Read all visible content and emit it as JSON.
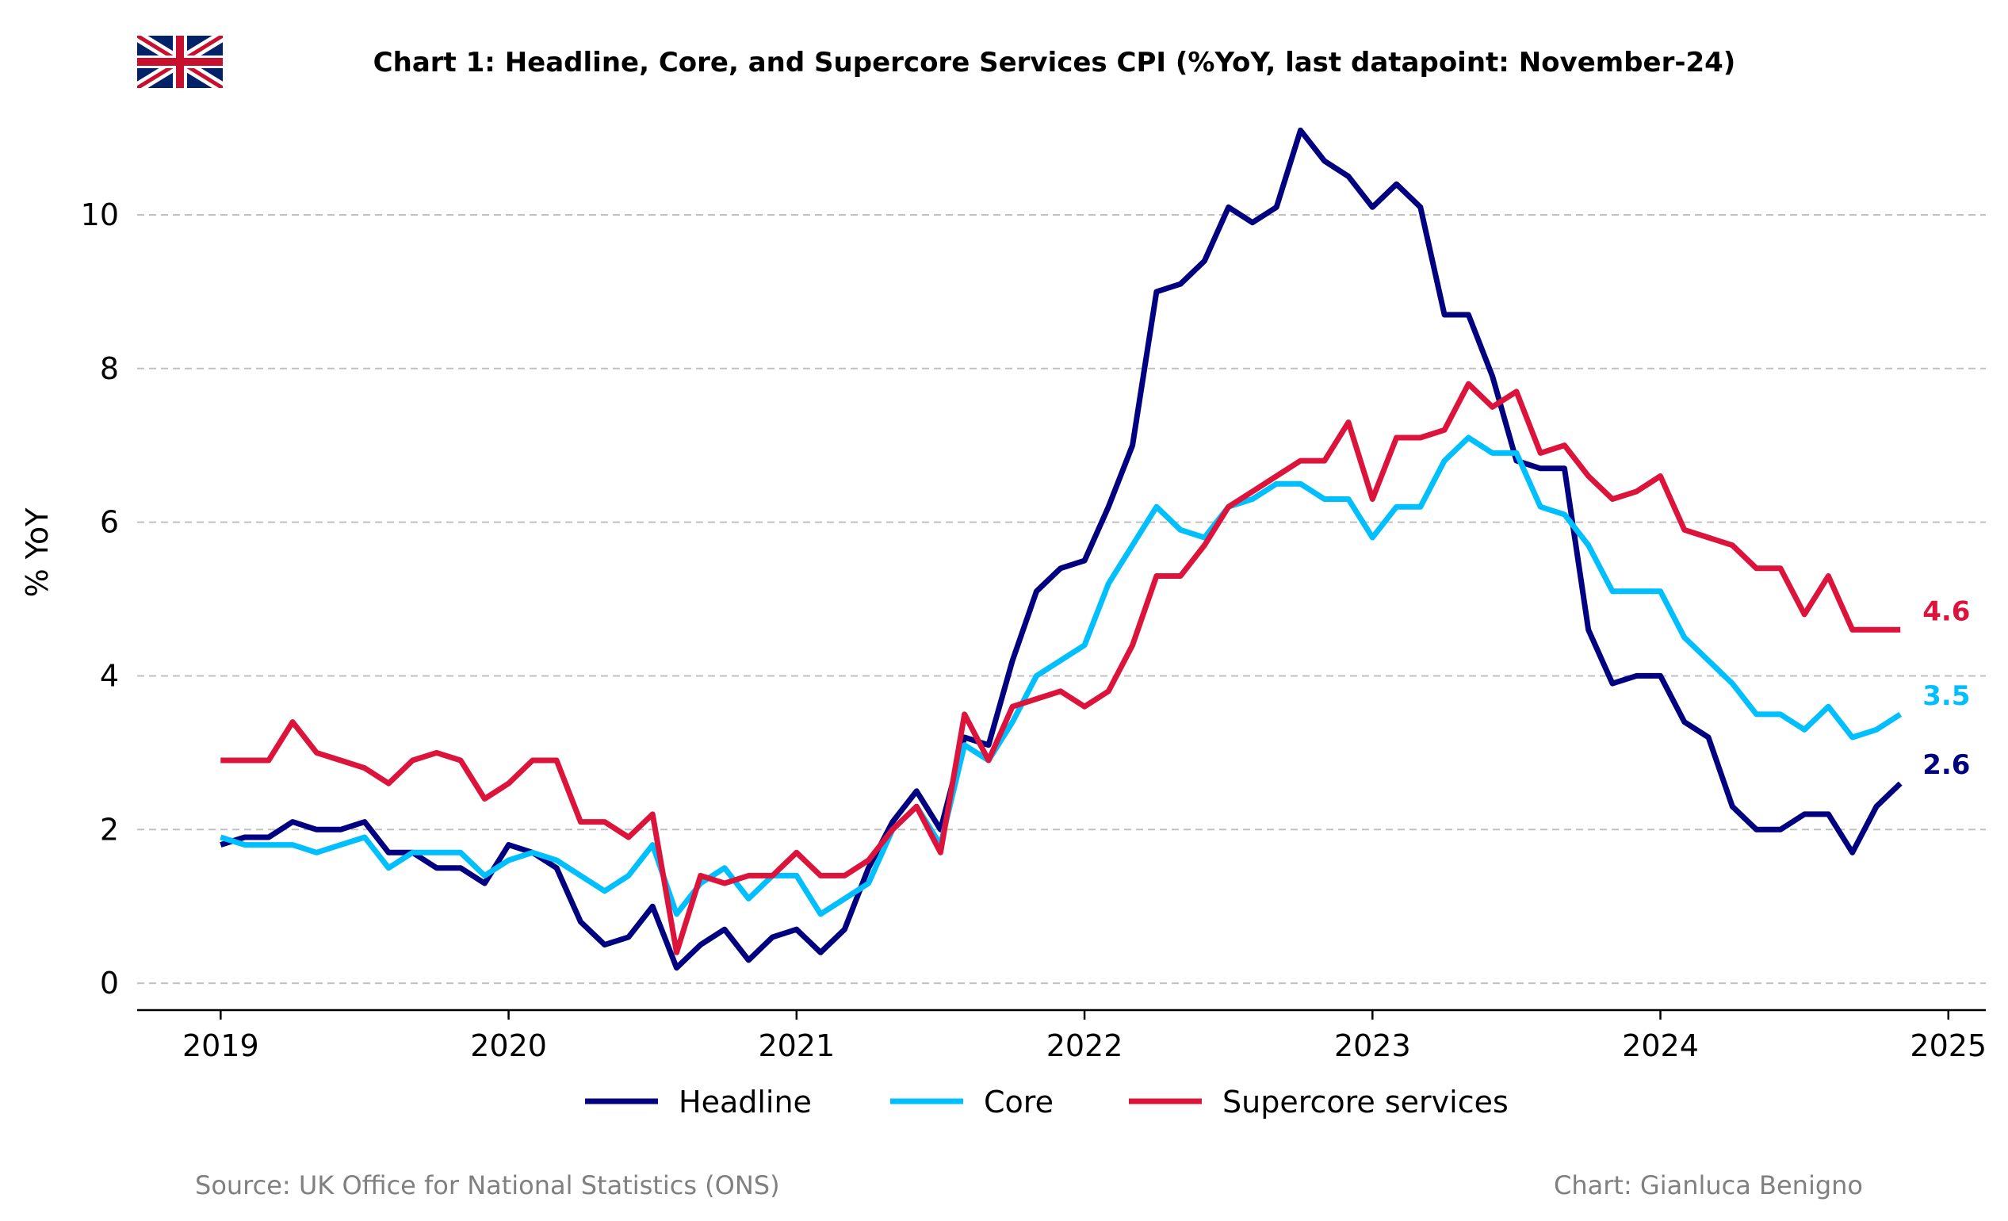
{
  "chart_data": {
    "type": "line",
    "title": "Chart 1: Headline, Core, and Supercore Services CPI (%YoY, last datapoint: November-24)",
    "xlabel": "",
    "ylabel": "% YoY",
    "ylim": [
      -0.35,
      11.3
    ],
    "xlim": [
      2018.71,
      2025.13
    ],
    "yticks": [
      0,
      2,
      4,
      6,
      8,
      10
    ],
    "xticks": [
      2019,
      2020,
      2021,
      2022,
      2023,
      2024,
      2025
    ],
    "grid": "horizontal dashed",
    "legend_position": "bottom-center",
    "x_start": "2019-01",
    "x_frequency": "monthly",
    "series": [
      {
        "name": "Headline",
        "color": "#000080",
        "end_label": "2.6",
        "values": [
          1.8,
          1.9,
          1.9,
          2.1,
          2.0,
          2.0,
          2.1,
          1.7,
          1.7,
          1.5,
          1.5,
          1.3,
          1.8,
          1.7,
          1.5,
          0.8,
          0.5,
          0.6,
          1.0,
          0.2,
          0.5,
          0.7,
          0.3,
          0.6,
          0.7,
          0.4,
          0.7,
          1.5,
          2.1,
          2.5,
          2.0,
          3.2,
          3.1,
          4.2,
          5.1,
          5.4,
          5.5,
          6.2,
          7.0,
          9.0,
          9.1,
          9.4,
          10.1,
          9.9,
          10.1,
          11.1,
          10.7,
          10.5,
          10.1,
          10.4,
          10.1,
          8.7,
          8.7,
          7.9,
          6.8,
          6.7,
          6.7,
          4.6,
          3.9,
          4.0,
          4.0,
          3.4,
          3.2,
          2.3,
          2.0,
          2.0,
          2.2,
          2.2,
          1.7,
          2.3,
          2.6
        ]
      },
      {
        "name": "Core",
        "color": "#00BFFF",
        "end_label": "3.5",
        "values": [
          1.9,
          1.8,
          1.8,
          1.8,
          1.7,
          1.8,
          1.9,
          1.5,
          1.7,
          1.7,
          1.7,
          1.4,
          1.6,
          1.7,
          1.6,
          1.4,
          1.2,
          1.4,
          1.8,
          0.9,
          1.3,
          1.5,
          1.1,
          1.4,
          1.4,
          0.9,
          1.1,
          1.3,
          2.0,
          2.3,
          1.8,
          3.1,
          2.9,
          3.4,
          4.0,
          4.2,
          4.4,
          5.2,
          5.7,
          6.2,
          5.9,
          5.8,
          6.2,
          6.3,
          6.5,
          6.5,
          6.3,
          6.3,
          5.8,
          6.2,
          6.2,
          6.8,
          7.1,
          6.9,
          6.9,
          6.2,
          6.1,
          5.7,
          5.1,
          5.1,
          5.1,
          4.5,
          4.2,
          3.9,
          3.5,
          3.5,
          3.3,
          3.6,
          3.2,
          3.3,
          3.5
        ]
      },
      {
        "name": "Supercore services",
        "color": "#DC143C",
        "end_label": "4.6",
        "values": [
          2.9,
          2.9,
          2.9,
          3.4,
          3.0,
          2.9,
          2.8,
          2.6,
          2.9,
          3.0,
          2.9,
          2.4,
          2.6,
          2.9,
          2.9,
          2.1,
          2.1,
          1.9,
          2.2,
          0.4,
          1.4,
          1.3,
          1.4,
          1.4,
          1.7,
          1.4,
          1.4,
          1.6,
          2.0,
          2.3,
          1.7,
          3.5,
          2.9,
          3.6,
          3.7,
          3.8,
          3.6,
          3.8,
          4.4,
          5.3,
          5.3,
          5.7,
          6.2,
          6.4,
          6.6,
          6.8,
          6.8,
          7.3,
          6.3,
          7.1,
          7.1,
          7.2,
          7.8,
          7.5,
          7.7,
          6.9,
          7.0,
          6.6,
          6.3,
          6.4,
          6.6,
          5.9,
          5.8,
          5.7,
          5.4,
          5.4,
          4.8,
          5.3,
          4.6,
          4.6,
          4.6
        ]
      }
    ]
  },
  "flag": {
    "name": "uk-flag-icon",
    "blue": "#012169",
    "red": "#C8102E",
    "white": "#FFFFFF"
  },
  "footer": {
    "source": "Source: UK Office for National Statistics (ONS)",
    "credit": "Chart: Gianluca Benigno"
  }
}
